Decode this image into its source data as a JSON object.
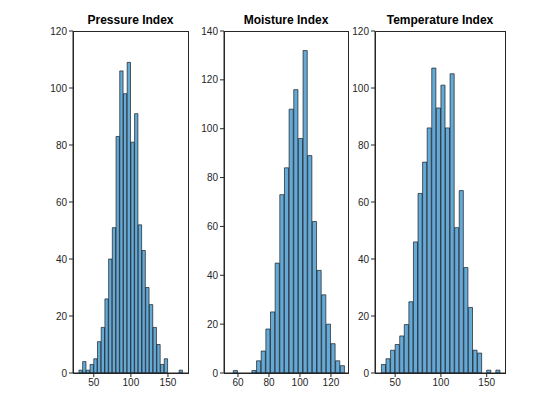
{
  "chart_data": [
    {
      "type": "histogram",
      "title": "Pressure Index",
      "color": "#65a9d7",
      "bins": [
        30,
        35,
        40,
        45,
        50,
        55,
        60,
        65,
        70,
        75,
        80,
        85,
        90,
        95,
        100,
        105,
        110,
        115,
        120,
        125,
        130,
        135,
        140,
        145,
        150,
        155,
        160,
        165,
        170
      ],
      "counts": [
        1,
        4,
        1,
        3,
        5,
        11,
        16,
        26,
        40,
        51,
        83,
        106,
        98,
        109,
        81,
        91,
        52,
        43,
        30,
        24,
        16,
        10,
        3,
        5,
        0,
        0,
        0,
        1
      ],
      "xlim": [
        22,
        177
      ],
      "xticks": [
        50,
        100,
        150
      ],
      "ylim": [
        0,
        120
      ],
      "yticks": [
        0,
        20,
        40,
        60,
        80,
        100,
        120
      ]
    },
    {
      "type": "histogram",
      "title": "Moisture Index",
      "color": "#65a9d7",
      "bins": [
        57,
        60,
        63,
        66,
        69,
        72,
        75,
        78,
        81,
        84,
        87,
        90,
        93,
        96,
        99,
        102,
        105,
        108,
        111,
        114,
        117,
        120,
        123,
        126,
        129
      ],
      "counts": [
        1,
        0,
        0,
        0,
        1,
        5,
        9,
        18,
        25,
        45,
        73,
        84,
        108,
        116,
        96,
        132,
        89,
        62,
        42,
        32,
        20,
        12,
        5,
        3
      ],
      "xlim": [
        51,
        131
      ],
      "xticks": [
        60,
        80,
        100,
        120
      ],
      "ylim": [
        0,
        140
      ],
      "yticks": [
        0,
        20,
        40,
        60,
        80,
        100,
        120,
        140
      ]
    },
    {
      "type": "histogram",
      "title": "Temperature Index",
      "color": "#65a9d7",
      "bins": [
        35,
        40,
        45,
        50,
        55,
        60,
        65,
        70,
        75,
        80,
        85,
        90,
        95,
        100,
        105,
        110,
        115,
        120,
        125,
        130,
        135,
        140,
        145,
        150,
        155,
        160,
        165
      ],
      "counts": [
        3,
        5,
        8,
        10,
        13,
        17,
        25,
        46,
        63,
        74,
        86,
        107,
        93,
        101,
        86,
        105,
        51,
        64,
        37,
        23,
        8,
        7,
        0,
        1,
        0,
        1
      ],
      "xlim": [
        28,
        170
      ],
      "xticks": [
        50,
        100,
        150
      ],
      "ylim": [
        0,
        120
      ],
      "yticks": [
        0,
        20,
        40,
        60,
        80,
        100,
        120
      ]
    }
  ]
}
